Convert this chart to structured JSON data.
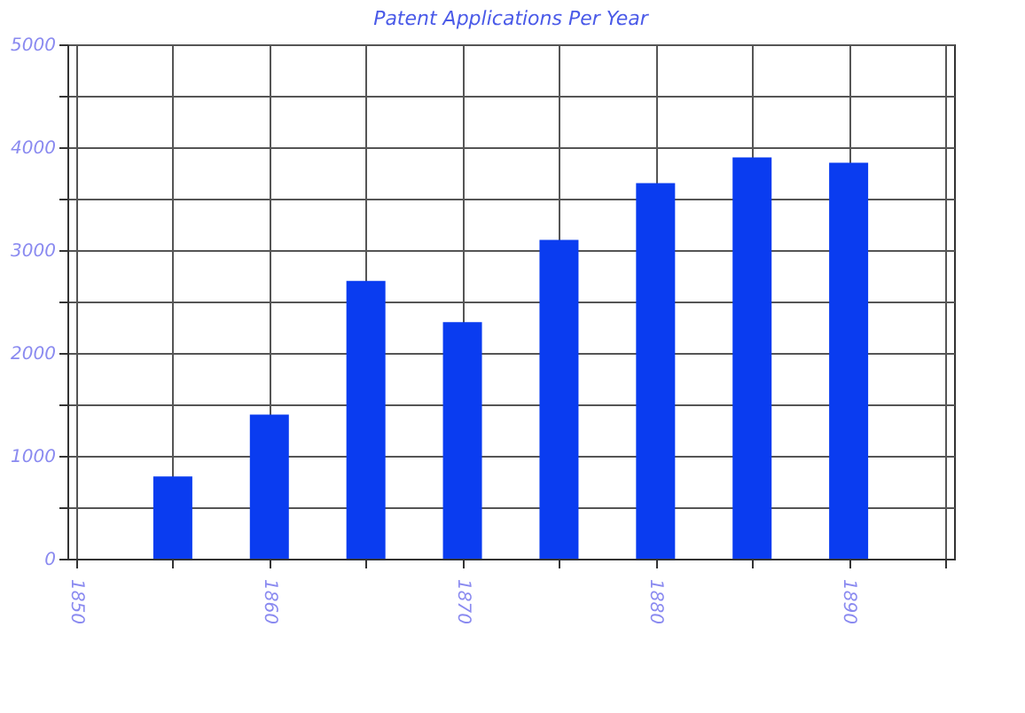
{
  "chart_data": {
    "type": "bar",
    "title": "Patent Applications Per Year",
    "x": [
      1855,
      1860,
      1865,
      1870,
      1875,
      1880,
      1885,
      1890
    ],
    "series": [
      {
        "color": "#0a3cf0",
        "values": [
          800,
          1400,
          2700,
          2300,
          3100,
          3650,
          3900,
          3850
        ]
      }
    ],
    "xlim": [
      1850,
      1895
    ],
    "xticks": [
      1850,
      {
        "value": 1855,
        "label": null
      },
      1860,
      {
        "value": 1865,
        "label": null
      },
      1870,
      {
        "value": 1875,
        "label": null
      },
      1880,
      {
        "value": 1885,
        "label": null
      },
      1890,
      {
        "value": 1895,
        "label": null
      }
    ],
    "ylim": [
      0,
      5000
    ],
    "yticks": [
      0,
      {
        "value": 500,
        "label": null
      },
      1000,
      {
        "value": 1500,
        "label": null
      },
      2000,
      {
        "value": 2500,
        "label": null
      },
      3000,
      {
        "value": 3500,
        "label": null
      },
      4000,
      {
        "value": 4500,
        "label": null
      },
      5000
    ],
    "grid": true
  }
}
